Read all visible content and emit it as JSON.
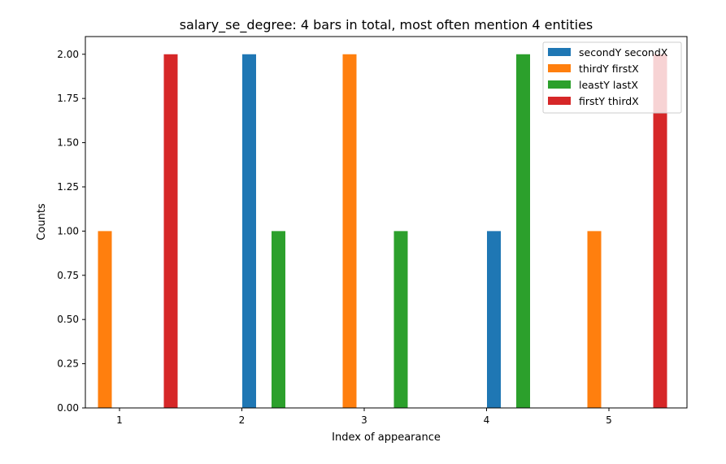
{
  "chart_data": {
    "type": "bar",
    "title": "salary_se_degree: 4 bars in total, most often mention  4 entities",
    "xlabel": "Index of appearance",
    "ylabel": "Counts",
    "categories": [
      "1",
      "2",
      "3",
      "4",
      "5"
    ],
    "ylim": [
      0,
      2.1
    ],
    "yticks": [
      "0.00",
      "0.25",
      "0.50",
      "0.75",
      "1.00",
      "1.25",
      "1.50",
      "1.75",
      "2.00"
    ],
    "grid": false,
    "legend_position": "top-right",
    "series": [
      {
        "name": "secondY secondX",
        "color": "#1f77b4",
        "values": [
          0,
          2,
          0,
          1,
          0
        ]
      },
      {
        "name": "thirdY firstX",
        "color": "#ff7f0e",
        "values": [
          1,
          0,
          2,
          0,
          1
        ]
      },
      {
        "name": "leastY lastX",
        "color": "#2ca02c",
        "values": [
          0,
          1,
          1,
          2,
          0
        ]
      },
      {
        "name": "firstY thirdX",
        "color": "#d62728",
        "values": [
          2,
          0,
          0,
          0,
          2
        ]
      }
    ]
  }
}
